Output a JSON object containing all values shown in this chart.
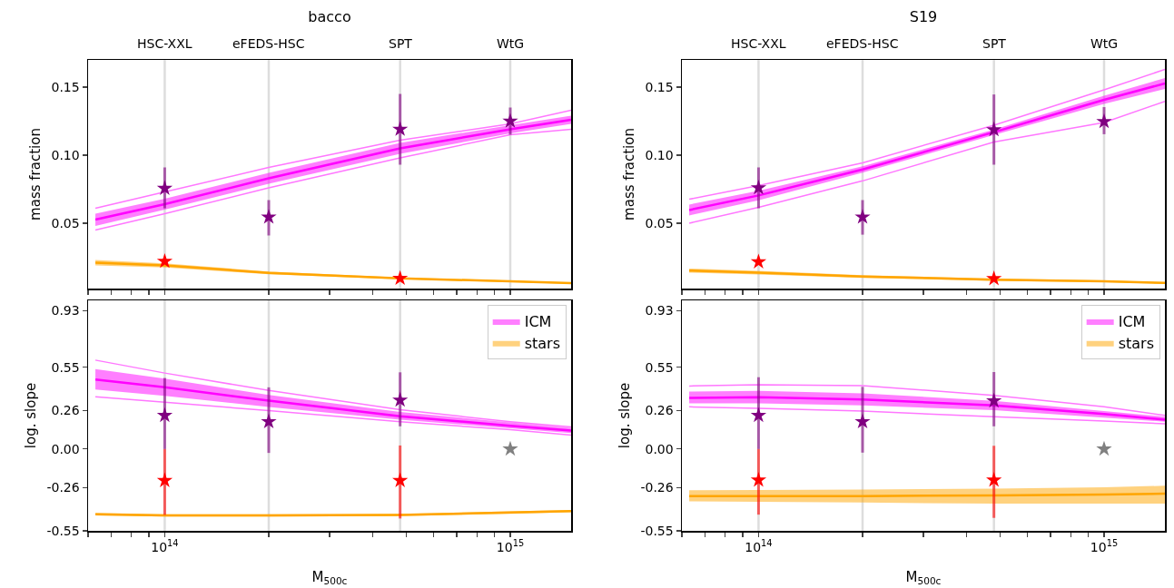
{
  "chart_data": [
    {
      "type": "line",
      "title": "bacco",
      "ylabel": "mass fraction",
      "xlim": [
        60000000000000.0,
        1500000000000000.0
      ],
      "xticks": [
        {
          "value": 60000000000000.0,
          "label": null
        },
        {
          "value": 70000000000000.0,
          "label": null
        },
        {
          "value": 80000000000000.0,
          "label": null
        },
        {
          "value": 90000000000000.0,
          "label": null
        },
        {
          "value": 100000000000000.0,
          "label": null
        },
        {
          "value": 200000000000000.0,
          "label": null
        },
        {
          "value": 300000000000000.0,
          "label": null
        },
        {
          "value": 400000000000000.0,
          "label": null
        },
        {
          "value": 500000000000000.0,
          "label": null
        },
        {
          "value": 600000000000000.0,
          "label": null
        },
        {
          "value": 700000000000000.0,
          "label": null
        },
        {
          "value": 800000000000000.0,
          "label": null
        },
        {
          "value": 900000000000000.0,
          "label": null
        },
        {
          "value": 1000000000000000.0,
          "label": null
        }
      ],
      "log": "x",
      "ylim": [
        0.002,
        0.17
      ],
      "yticks": [
        {
          "value": 0.05,
          "label": "0.05"
        },
        {
          "value": 0.1,
          "label": "0.10"
        },
        {
          "value": 0.15,
          "label": "0.15"
        }
      ],
      "tick_labels": "y",
      "legend": false,
      "grid": false,
      "ref_lines": [
        {
          "axis": "x",
          "value": 100000000000000.0,
          "label": "HSC-XXL",
          "color": "#dddddd"
        },
        {
          "axis": "x",
          "value": 200000000000000.0,
          "label": "eFEDS-HSC",
          "color": "#dddddd"
        },
        {
          "axis": "x",
          "value": 480000000000000.0,
          "label": "SPT",
          "color": "#dddddd"
        },
        {
          "axis": "x",
          "value": 1000000000000000.0,
          "label": "WtG",
          "color": "#dddddd"
        }
      ],
      "series": [
        {
          "type": "line",
          "color": "#ff77ff",
          "x": [
            63000000000000.0,
            100000000000000.0,
            200000000000000.0,
            480000000000000.0,
            1000000000000000.0,
            1500000000000000.0
          ],
          "values": [
            0.061,
            0.073,
            0.091,
            0.111,
            0.123,
            0.133
          ]
        },
        {
          "type": "line",
          "color": "#ff77ff",
          "x": [
            63000000000000.0,
            100000000000000.0,
            200000000000000.0,
            480000000000000.0,
            1000000000000000.0,
            1500000000000000.0
          ],
          "values": [
            0.045,
            0.057,
            0.076,
            0.098,
            0.115,
            0.119
          ]
        },
        {
          "type": "line",
          "color": "#ff00ff",
          "x": [
            63000000000000.0,
            100000000000000.0,
            200000000000000.0,
            480000000000000.0,
            1000000000000000.0,
            1500000000000000.0
          ],
          "values": [
            0.0527,
            0.064,
            0.083,
            0.105,
            0.119,
            0.126
          ],
          "lower": [
            0.048,
            0.06,
            0.079,
            0.101,
            0.116,
            0.123
          ],
          "upper": [
            0.057,
            0.068,
            0.087,
            0.109,
            0.122,
            0.129
          ]
        },
        {
          "type": "line",
          "color": "#ffa500",
          "x": [
            63000000000000.0,
            100000000000000.0,
            200000000000000.0,
            480000000000000.0,
            1000000000000000.0,
            1500000000000000.0
          ],
          "values": [
            0.021,
            0.019,
            0.0135,
            0.0095,
            0.0073,
            0.006
          ],
          "lower": [
            0.019,
            0.0175,
            0.0125,
            0.0088,
            0.0067,
            0.0055
          ],
          "upper": [
            0.023,
            0.0205,
            0.0145,
            0.0102,
            0.0079,
            0.0065
          ]
        },
        {
          "type": "scatter",
          "marker": "star",
          "color": "#800080",
          "x": [
            100000000000000.0,
            200000000000000.0,
            480000000000000.0,
            1000000000000000.0
          ],
          "values": [
            0.0756,
            0.0545,
            0.119,
            0.125
          ],
          "errors": [
            [
              0.061,
              0.091
            ],
            [
              0.041,
              0.067
            ],
            [
              0.093,
              0.145
            ],
            [
              0.115,
              0.135
            ]
          ]
        },
        {
          "type": "scatter",
          "marker": "star",
          "color": "#ff0000",
          "x": [
            100000000000000.0,
            480000000000000.0
          ],
          "values": [
            0.022,
            0.0095
          ],
          "errors": [
            [
              0.0205,
              0.0235
            ],
            null
          ]
        }
      ]
    },
    {
      "type": "line",
      "title": "S19",
      "ylabel": "mass fraction",
      "xlim": [
        60000000000000.0,
        1500000000000000.0
      ],
      "xticks": [
        {
          "value": 60000000000000.0,
          "label": null
        },
        {
          "value": 70000000000000.0,
          "label": null
        },
        {
          "value": 80000000000000.0,
          "label": null
        },
        {
          "value": 90000000000000.0,
          "label": null
        },
        {
          "value": 100000000000000.0,
          "label": null
        },
        {
          "value": 200000000000000.0,
          "label": null
        },
        {
          "value": 300000000000000.0,
          "label": null
        },
        {
          "value": 400000000000000.0,
          "label": null
        },
        {
          "value": 500000000000000.0,
          "label": null
        },
        {
          "value": 600000000000000.0,
          "label": null
        },
        {
          "value": 700000000000000.0,
          "label": null
        },
        {
          "value": 800000000000000.0,
          "label": null
        },
        {
          "value": 900000000000000.0,
          "label": null
        },
        {
          "value": 1000000000000000.0,
          "label": null
        }
      ],
      "log": "x",
      "ylim": [
        0.002,
        0.17
      ],
      "yticks": [
        {
          "value": 0.05,
          "label": "0.05"
        },
        {
          "value": 0.1,
          "label": "0.10"
        },
        {
          "value": 0.15,
          "label": "0.15"
        }
      ],
      "tick_labels": "y",
      "legend": false,
      "grid": false,
      "ref_lines": [
        {
          "axis": "x",
          "value": 100000000000000.0,
          "label": "HSC-XXL",
          "color": "#dddddd"
        },
        {
          "axis": "x",
          "value": 200000000000000.0,
          "label": "eFEDS-HSC",
          "color": "#dddddd"
        },
        {
          "axis": "x",
          "value": 480000000000000.0,
          "label": "SPT",
          "color": "#dddddd"
        },
        {
          "axis": "x",
          "value": 1000000000000000.0,
          "label": "WtG",
          "color": "#dddddd"
        }
      ],
      "series": [
        {
          "type": "line",
          "color": "#ff77ff",
          "x": [
            63000000000000.0,
            100000000000000.0,
            200000000000000.0,
            480000000000000.0,
            1000000000000000.0,
            1500000000000000.0
          ],
          "values": [
            0.0676,
            0.0776,
            0.0943,
            0.122,
            0.148,
            0.163
          ]
        },
        {
          "type": "line",
          "color": "#ff77ff",
          "x": [
            63000000000000.0,
            100000000000000.0,
            200000000000000.0,
            480000000000000.0,
            1000000000000000.0,
            1500000000000000.0
          ],
          "values": [
            0.05,
            0.0616,
            0.0811,
            0.1097,
            0.124,
            0.1395
          ]
        },
        {
          "type": "line",
          "color": "#ff00ff",
          "x": [
            63000000000000.0,
            100000000000000.0,
            200000000000000.0,
            480000000000000.0,
            1000000000000000.0,
            1500000000000000.0
          ],
          "values": [
            0.0597,
            0.0704,
            0.0895,
            0.1169,
            0.1407,
            0.1527
          ],
          "lower": [
            0.0557,
            0.0669,
            0.0872,
            0.1149,
            0.1377,
            0.1487
          ],
          "upper": [
            0.0637,
            0.0739,
            0.0918,
            0.1189,
            0.1437,
            0.1567
          ]
        },
        {
          "type": "line",
          "color": "#ffa500",
          "x": [
            63000000000000.0,
            100000000000000.0,
            200000000000000.0,
            480000000000000.0,
            1000000000000000.0,
            1500000000000000.0
          ],
          "values": [
            0.0152,
            0.0137,
            0.0109,
            0.0085,
            0.0073,
            0.0061
          ],
          "lower": [
            0.0137,
            0.0124,
            0.0099,
            0.0077,
            0.0066,
            0.0055
          ],
          "upper": [
            0.0167,
            0.015,
            0.0119,
            0.0093,
            0.008,
            0.0067
          ]
        },
        {
          "type": "scatter",
          "marker": "star",
          "color": "#800080",
          "x": [
            100000000000000.0,
            200000000000000.0,
            480000000000000.0,
            1000000000000000.0
          ],
          "values": [
            0.076,
            0.0545,
            0.1187,
            0.1247
          ],
          "errors": [
            [
              0.061,
              0.091
            ],
            [
              0.0416,
              0.067
            ],
            [
              0.093,
              0.1446
            ],
            [
              0.1154,
              0.1353
            ]
          ]
        },
        {
          "type": "scatter",
          "marker": "star",
          "color": "#ff0000",
          "x": [
            100000000000000.0,
            480000000000000.0
          ],
          "values": [
            0.0216,
            0.0093
          ],
          "errors": [
            [
              0.0201,
              0.0227
            ],
            null
          ]
        }
      ]
    },
    {
      "type": "line",
      "ylabel": "log. slope",
      "xlabel": "M$_{500c}$",
      "xlim": [
        60000000000000.0,
        1500000000000000.0
      ],
      "xticks": [
        {
          "value": 60000000000000.0,
          "label": null
        },
        {
          "value": 70000000000000.0,
          "label": null
        },
        {
          "value": 80000000000000.0,
          "label": null
        },
        {
          "value": 90000000000000.0,
          "label": null
        },
        {
          "value": 100000000000000.0,
          "label": "10$^{14}$"
        },
        {
          "value": 200000000000000.0,
          "label": null
        },
        {
          "value": 300000000000000.0,
          "label": null
        },
        {
          "value": 400000000000000.0,
          "label": null
        },
        {
          "value": 500000000000000.0,
          "label": null
        },
        {
          "value": 600000000000000.0,
          "label": null
        },
        {
          "value": 700000000000000.0,
          "label": null
        },
        {
          "value": 800000000000000.0,
          "label": null
        },
        {
          "value": 900000000000000.0,
          "label": null
        },
        {
          "value": 1000000000000000.0,
          "label": "10$^{15}$"
        }
      ],
      "log": "x",
      "ylim": [
        -0.55,
        1.0
      ],
      "yticks": [
        {
          "value": -0.55,
          "label": "-0.55"
        },
        {
          "value": -0.26,
          "label": "-0.26"
        },
        {
          "value": 0,
          "label": "0.00"
        },
        {
          "value": 0.26,
          "label": "0.26"
        },
        {
          "value": 0.55,
          "label": "0.55"
        },
        {
          "value": 0.93,
          "label": "0.93"
        }
      ],
      "legend": "top right",
      "grid": false,
      "ref_lines": [
        {
          "axis": "x",
          "value": 100000000000000.0,
          "label": null,
          "color": "#dddddd"
        },
        {
          "axis": "x",
          "value": 200000000000000.0,
          "label": null,
          "color": "#dddddd"
        },
        {
          "axis": "x",
          "value": 480000000000000.0,
          "label": null,
          "color": "#dddddd"
        }
      ],
      "series": [
        {
          "type": "line",
          "color": "#ff77ff",
          "x": [
            63000000000000.0,
            100000000000000.0,
            200000000000000.0,
            480000000000000.0,
            1000000000000000.0,
            1500000000000000.0
          ],
          "values": [
            0.598,
            0.511,
            0.394,
            0.264,
            0.184,
            0.148
          ]
        },
        {
          "type": "line",
          "color": "#ff77ff",
          "x": [
            63000000000000.0,
            100000000000000.0,
            200000000000000.0,
            480000000000000.0,
            1000000000000000.0,
            1500000000000000.0
          ],
          "values": [
            0.352,
            0.315,
            0.258,
            0.184,
            0.13,
            0.094
          ]
        },
        {
          "type": "line",
          "name": "ICM",
          "color": "#ff00ff",
          "x": [
            63000000000000.0,
            100000000000000.0,
            200000000000000.0,
            480000000000000.0,
            1000000000000000.0,
            1500000000000000.0
          ],
          "values": [
            0.467,
            0.415,
            0.325,
            0.221,
            0.157,
            0.125
          ],
          "lower": [
            0.401,
            0.357,
            0.283,
            0.197,
            0.139,
            0.107
          ],
          "upper": [
            0.537,
            0.473,
            0.364,
            0.249,
            0.179,
            0.143
          ]
        },
        {
          "type": "line",
          "name": "stars",
          "color": "#ffa500",
          "x": [
            63000000000000.0,
            100000000000000.0,
            200000000000000.0,
            480000000000000.0,
            1000000000000000.0,
            1500000000000000.0
          ],
          "values": [
            -0.438,
            -0.446,
            -0.446,
            -0.443,
            -0.427,
            -0.417
          ],
          "lower": [
            -0.446,
            -0.454,
            -0.454,
            -0.451,
            -0.435,
            -0.425
          ],
          "upper": [
            -0.43,
            -0.438,
            -0.438,
            -0.435,
            -0.419,
            -0.409
          ]
        },
        {
          "type": "scatter",
          "marker": "star",
          "color": "#800080",
          "x": [
            100000000000000.0,
            200000000000000.0,
            480000000000000.0
          ],
          "values": [
            0.226,
            0.184,
            0.329
          ],
          "errors": [
            [
              0.0,
              0.478
            ],
            [
              -0.026,
              0.415
            ],
            [
              0.153,
              0.516
            ]
          ]
        },
        {
          "type": "scatter",
          "marker": "star",
          "color": "#ff0000",
          "x": [
            100000000000000.0,
            480000000000000.0
          ],
          "values": [
            -0.212,
            -0.212
          ],
          "errors": [
            [
              -0.443,
              0.0
            ],
            [
              -0.467,
              0.024
            ]
          ]
        },
        {
          "type": "scatter",
          "marker": "star",
          "color": "#808080",
          "x": [
            1000000000000000.0
          ],
          "values": [
            0.0
          ]
        }
      ]
    },
    {
      "type": "line",
      "ylabel": "log. slope",
      "xlabel": "M$_{500c}$",
      "xlim": [
        60000000000000.0,
        1500000000000000.0
      ],
      "xticks": [
        {
          "value": 60000000000000.0,
          "label": null
        },
        {
          "value": 70000000000000.0,
          "label": null
        },
        {
          "value": 80000000000000.0,
          "label": null
        },
        {
          "value": 90000000000000.0,
          "label": null
        },
        {
          "value": 100000000000000.0,
          "label": "10$^{14}$"
        },
        {
          "value": 200000000000000.0,
          "label": null
        },
        {
          "value": 300000000000000.0,
          "label": null
        },
        {
          "value": 400000000000000.0,
          "label": null
        },
        {
          "value": 500000000000000.0,
          "label": null
        },
        {
          "value": 600000000000000.0,
          "label": null
        },
        {
          "value": 700000000000000.0,
          "label": null
        },
        {
          "value": 800000000000000.0,
          "label": null
        },
        {
          "value": 900000000000000.0,
          "label": null
        },
        {
          "value": 1000000000000000.0,
          "label": "10$^{15}$"
        }
      ],
      "log": "x",
      "ylim": [
        -0.55,
        1.0
      ],
      "yticks": [
        {
          "value": -0.55,
          "label": "-0.55"
        },
        {
          "value": -0.26,
          "label": "-0.26"
        },
        {
          "value": 0,
          "label": "0.00"
        },
        {
          "value": 0.26,
          "label": "0.26"
        },
        {
          "value": 0.55,
          "label": "0.55"
        },
        {
          "value": 0.93,
          "label": "0.93"
        }
      ],
      "legend": "top right",
      "grid": false,
      "ref_lines": [
        {
          "axis": "x",
          "value": 100000000000000.0,
          "label": null,
          "color": "#dddddd"
        },
        {
          "axis": "x",
          "value": 200000000000000.0,
          "label": null,
          "color": "#dddddd"
        },
        {
          "axis": "x",
          "value": 480000000000000.0,
          "label": null,
          "color": "#dddddd"
        }
      ],
      "series": [
        {
          "type": "line",
          "color": "#ff77ff",
          "x": [
            63000000000000.0,
            100000000000000.0,
            200000000000000.0,
            480000000000000.0,
            1000000000000000.0,
            1500000000000000.0
          ],
          "values": [
            0.424,
            0.432,
            0.427,
            0.361,
            0.284,
            0.226
          ]
        },
        {
          "type": "line",
          "color": "#ff77ff",
          "x": [
            63000000000000.0,
            100000000000000.0,
            200000000000000.0,
            480000000000000.0,
            1000000000000000.0,
            1500000000000000.0
          ],
          "values": [
            0.284,
            0.274,
            0.255,
            0.217,
            0.188,
            0.17
          ]
        },
        {
          "type": "line",
          "name": "ICM",
          "color": "#ff00ff",
          "x": [
            63000000000000.0,
            100000000000000.0,
            200000000000000.0,
            480000000000000.0,
            1000000000000000.0,
            1500000000000000.0
          ],
          "values": [
            0.344,
            0.348,
            0.334,
            0.294,
            0.236,
            0.197
          ],
          "lower": [
            0.308,
            0.308,
            0.294,
            0.261,
            0.211,
            0.184
          ],
          "upper": [
            0.386,
            0.392,
            0.375,
            0.324,
            0.255,
            0.217
          ]
        },
        {
          "type": "line",
          "name": "stars",
          "color": "#ffa500",
          "x": [
            63000000000000.0,
            100000000000000.0,
            200000000000000.0,
            480000000000000.0,
            1000000000000000.0,
            1500000000000000.0
          ],
          "values": [
            -0.316,
            -0.316,
            -0.316,
            -0.312,
            -0.306,
            -0.3
          ],
          "lower": [
            -0.352,
            -0.355,
            -0.36,
            -0.367,
            -0.367,
            -0.367
          ],
          "upper": [
            -0.277,
            -0.275,
            -0.272,
            -0.267,
            -0.257,
            -0.247
          ]
        },
        {
          "type": "scatter",
          "marker": "star",
          "color": "#800080",
          "x": [
            100000000000000.0,
            200000000000000.0,
            480000000000000.0
          ],
          "values": [
            0.226,
            0.184,
            0.324
          ],
          "errors": [
            [
              0.0,
              0.483
            ],
            [
              -0.024,
              0.418
            ],
            [
              0.153,
              0.518
            ]
          ]
        },
        {
          "type": "scatter",
          "marker": "star",
          "color": "#ff0000",
          "x": [
            100000000000000.0,
            480000000000000.0
          ],
          "values": [
            -0.209,
            -0.209
          ],
          "errors": [
            [
              -0.441,
              0.0
            ],
            [
              -0.463,
              0.022
            ]
          ]
        },
        {
          "type": "scatter",
          "marker": "star",
          "color": "#808080",
          "x": [
            1000000000000000.0
          ],
          "values": [
            0.0
          ]
        }
      ]
    }
  ]
}
